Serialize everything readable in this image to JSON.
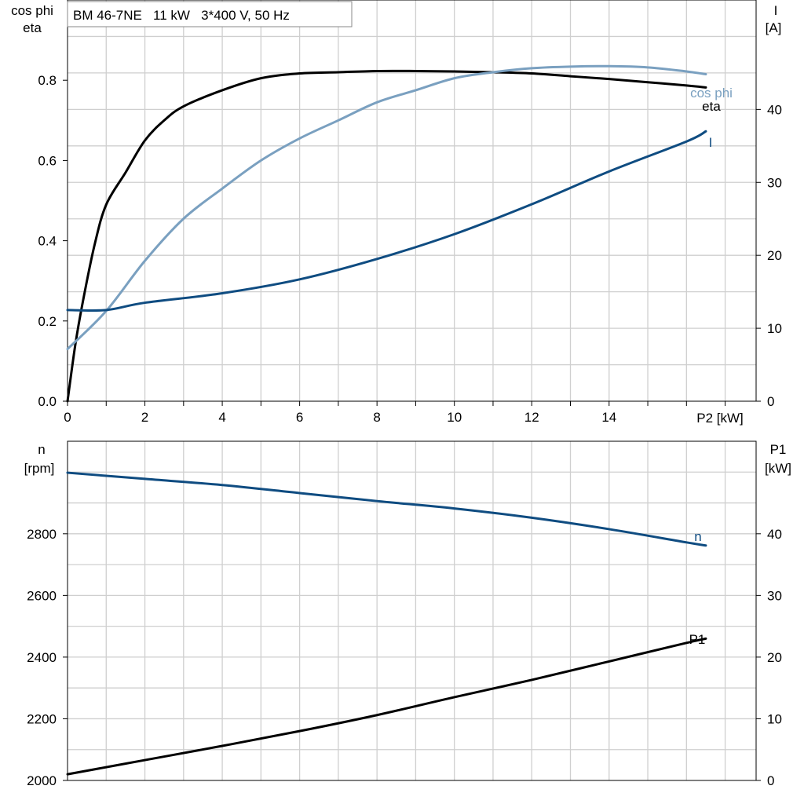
{
  "chart_data": [
    {
      "type": "line",
      "title": "BM 46-7NE   11 kW   3*400 V, 50 Hz",
      "xlabel": "P2 [kW]",
      "x_ticks": [
        0,
        2,
        4,
        6,
        8,
        10,
        12,
        14
      ],
      "xlim": [
        0,
        17.8
      ],
      "ylabel_left": [
        "cos phi",
        "eta"
      ],
      "ylabel_right": [
        "I",
        "[A]"
      ],
      "ylim_left": [
        0,
        1.0
      ],
      "ylim_right": [
        0,
        55
      ],
      "y_ticks_left": [
        0.0,
        0.2,
        0.4,
        0.6,
        0.8
      ],
      "y_ticks_right": [
        0,
        10,
        20,
        30,
        40
      ],
      "grid": true,
      "series": [
        {
          "name": "eta",
          "axis": "left",
          "color": "#000000",
          "x": [
            0,
            0.2,
            0.4,
            0.7,
            1.0,
            1.5,
            2,
            2.5,
            3,
            4,
            5,
            6,
            7,
            8,
            9,
            10,
            11,
            12,
            13,
            14,
            15,
            16,
            16.5
          ],
          "y": [
            0.0,
            0.14,
            0.25,
            0.39,
            0.49,
            0.57,
            0.65,
            0.7,
            0.735,
            0.775,
            0.805,
            0.817,
            0.82,
            0.823,
            0.823,
            0.822,
            0.82,
            0.817,
            0.81,
            0.803,
            0.795,
            0.787,
            0.782
          ]
        },
        {
          "name": "cos phi",
          "axis": "left",
          "color": "#7aa0c0",
          "x": [
            0,
            1,
            2,
            3,
            4,
            5,
            6,
            7,
            8,
            9,
            10,
            11,
            12,
            13,
            14,
            15,
            16,
            16.5
          ],
          "y": [
            0.13,
            0.225,
            0.35,
            0.455,
            0.53,
            0.6,
            0.655,
            0.7,
            0.745,
            0.775,
            0.805,
            0.82,
            0.83,
            0.834,
            0.835,
            0.832,
            0.822,
            0.815
          ]
        },
        {
          "name": "I",
          "axis": "right",
          "color": "#0f4c81",
          "x": [
            0,
            1,
            2,
            4,
            6,
            8,
            10,
            12,
            14,
            16,
            16.5
          ],
          "y": [
            12.5,
            12.5,
            13.5,
            14.8,
            16.7,
            19.5,
            22.9,
            27.0,
            31.5,
            35.6,
            37.0
          ]
        }
      ],
      "labels": {
        "eta": "eta",
        "cos_phi": "cos phi",
        "I": "I"
      }
    },
    {
      "type": "line",
      "xlim": [
        0,
        17.8
      ],
      "ylabel_left": [
        "n",
        "[rpm]"
      ],
      "ylabel_right": [
        "P1",
        "[kW]"
      ],
      "ylim_left": [
        2000,
        3100
      ],
      "ylim_right": [
        0,
        55
      ],
      "y_ticks_left": [
        2000,
        2200,
        2400,
        2600,
        2800
      ],
      "y_ticks_right": [
        0,
        10,
        20,
        30,
        40
      ],
      "grid": true,
      "series": [
        {
          "name": "n",
          "axis": "left",
          "color": "#0f4c81",
          "x": [
            0,
            2,
            4,
            6,
            8,
            10,
            12,
            14,
            16,
            16.5
          ],
          "y": [
            2998,
            2978,
            2958,
            2932,
            2906,
            2882,
            2852,
            2815,
            2772,
            2762
          ]
        },
        {
          "name": "P1",
          "axis": "right",
          "color": "#000000",
          "x": [
            0,
            2,
            4,
            6,
            8,
            10,
            12,
            14,
            16,
            16.5
          ],
          "y": [
            1.0,
            3.3,
            5.6,
            8.0,
            10.6,
            13.5,
            16.3,
            19.3,
            22.3,
            23.0
          ]
        }
      ],
      "labels": {
        "n": "n",
        "P1": "P1"
      }
    }
  ]
}
